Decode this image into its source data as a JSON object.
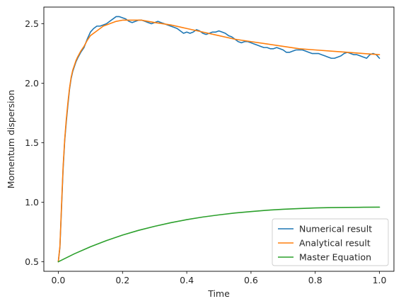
{
  "chart_data": {
    "type": "line",
    "xlabel": "Time",
    "ylabel": "Momentum dispersion",
    "xlim": [
      -0.045,
      1.045
    ],
    "ylim": [
      0.42,
      2.64
    ],
    "xticks": [
      0.0,
      0.2,
      0.4,
      0.6,
      0.8,
      1.0
    ],
    "xtick_labels": [
      "0.0",
      "0.2",
      "0.4",
      "0.6",
      "0.8",
      "1.0"
    ],
    "yticks": [
      0.5,
      1.0,
      1.5,
      2.0,
      2.5
    ],
    "ytick_labels": [
      "0.5",
      "1.0",
      "1.5",
      "2.0",
      "2.5"
    ],
    "grid": false,
    "legend_position": "lower-right",
    "series": [
      {
        "name": "Numerical result",
        "color": "#1f77b4",
        "x": [
          0.0,
          0.005,
          0.01,
          0.015,
          0.02,
          0.025,
          0.03,
          0.035,
          0.04,
          0.045,
          0.05,
          0.055,
          0.06,
          0.07,
          0.08,
          0.09,
          0.1,
          0.11,
          0.12,
          0.13,
          0.14,
          0.15,
          0.16,
          0.17,
          0.18,
          0.19,
          0.2,
          0.21,
          0.22,
          0.23,
          0.24,
          0.25,
          0.26,
          0.27,
          0.28,
          0.29,
          0.3,
          0.31,
          0.32,
          0.33,
          0.34,
          0.35,
          0.36,
          0.37,
          0.38,
          0.39,
          0.4,
          0.41,
          0.42,
          0.43,
          0.44,
          0.45,
          0.46,
          0.47,
          0.48,
          0.49,
          0.5,
          0.51,
          0.52,
          0.53,
          0.54,
          0.55,
          0.56,
          0.57,
          0.58,
          0.59,
          0.6,
          0.61,
          0.62,
          0.63,
          0.64,
          0.65,
          0.66,
          0.67,
          0.68,
          0.69,
          0.7,
          0.71,
          0.72,
          0.73,
          0.74,
          0.75,
          0.76,
          0.77,
          0.78,
          0.79,
          0.8,
          0.81,
          0.82,
          0.83,
          0.84,
          0.85,
          0.86,
          0.87,
          0.88,
          0.89,
          0.9,
          0.91,
          0.92,
          0.93,
          0.94,
          0.95,
          0.96,
          0.97,
          0.98,
          0.99,
          1.0
        ],
        "y": [
          0.5,
          0.62,
          0.95,
          1.28,
          1.52,
          1.68,
          1.82,
          1.95,
          2.04,
          2.1,
          2.14,
          2.18,
          2.21,
          2.26,
          2.3,
          2.37,
          2.43,
          2.46,
          2.48,
          2.48,
          2.49,
          2.5,
          2.52,
          2.54,
          2.56,
          2.56,
          2.55,
          2.54,
          2.52,
          2.51,
          2.52,
          2.53,
          2.53,
          2.52,
          2.51,
          2.5,
          2.51,
          2.52,
          2.51,
          2.5,
          2.49,
          2.48,
          2.47,
          2.46,
          2.44,
          2.42,
          2.43,
          2.42,
          2.43,
          2.45,
          2.44,
          2.42,
          2.41,
          2.42,
          2.43,
          2.43,
          2.44,
          2.43,
          2.42,
          2.4,
          2.39,
          2.37,
          2.35,
          2.34,
          2.35,
          2.35,
          2.34,
          2.33,
          2.32,
          2.31,
          2.3,
          2.3,
          2.29,
          2.29,
          2.3,
          2.29,
          2.28,
          2.26,
          2.26,
          2.27,
          2.28,
          2.28,
          2.28,
          2.27,
          2.26,
          2.25,
          2.25,
          2.25,
          2.24,
          2.23,
          2.22,
          2.21,
          2.21,
          2.22,
          2.23,
          2.25,
          2.26,
          2.25,
          2.24,
          2.24,
          2.23,
          2.22,
          2.21,
          2.24,
          2.25,
          2.24,
          2.21
        ]
      },
      {
        "name": "Analytical result",
        "color": "#ff7f0e",
        "x": [
          0.0,
          0.005,
          0.01,
          0.015,
          0.02,
          0.025,
          0.03,
          0.035,
          0.04,
          0.045,
          0.05,
          0.055,
          0.06,
          0.07,
          0.08,
          0.09,
          0.1,
          0.12,
          0.14,
          0.16,
          0.18,
          0.2,
          0.22,
          0.24,
          0.26,
          0.28,
          0.3,
          0.35,
          0.4,
          0.45,
          0.5,
          0.55,
          0.6,
          0.65,
          0.7,
          0.75,
          0.8,
          0.85,
          0.9,
          0.95,
          1.0
        ],
        "y": [
          0.5,
          0.63,
          0.97,
          1.3,
          1.53,
          1.7,
          1.84,
          1.96,
          2.05,
          2.11,
          2.15,
          2.19,
          2.22,
          2.27,
          2.31,
          2.36,
          2.4,
          2.44,
          2.48,
          2.5,
          2.52,
          2.53,
          2.53,
          2.53,
          2.53,
          2.52,
          2.51,
          2.49,
          2.46,
          2.43,
          2.4,
          2.37,
          2.35,
          2.33,
          2.31,
          2.29,
          2.28,
          2.27,
          2.26,
          2.25,
          2.24
        ]
      },
      {
        "name": "Master Equation",
        "color": "#2ca02c",
        "x": [
          0.0,
          0.05,
          0.1,
          0.15,
          0.2,
          0.25,
          0.3,
          0.35,
          0.4,
          0.45,
          0.5,
          0.55,
          0.6,
          0.65,
          0.7,
          0.75,
          0.8,
          0.85,
          0.9,
          0.95,
          1.0
        ],
        "y": [
          0.5,
          0.567,
          0.626,
          0.678,
          0.724,
          0.764,
          0.798,
          0.828,
          0.854,
          0.876,
          0.894,
          0.91,
          0.922,
          0.933,
          0.941,
          0.947,
          0.952,
          0.955,
          0.957,
          0.958,
          0.959
        ]
      }
    ]
  }
}
